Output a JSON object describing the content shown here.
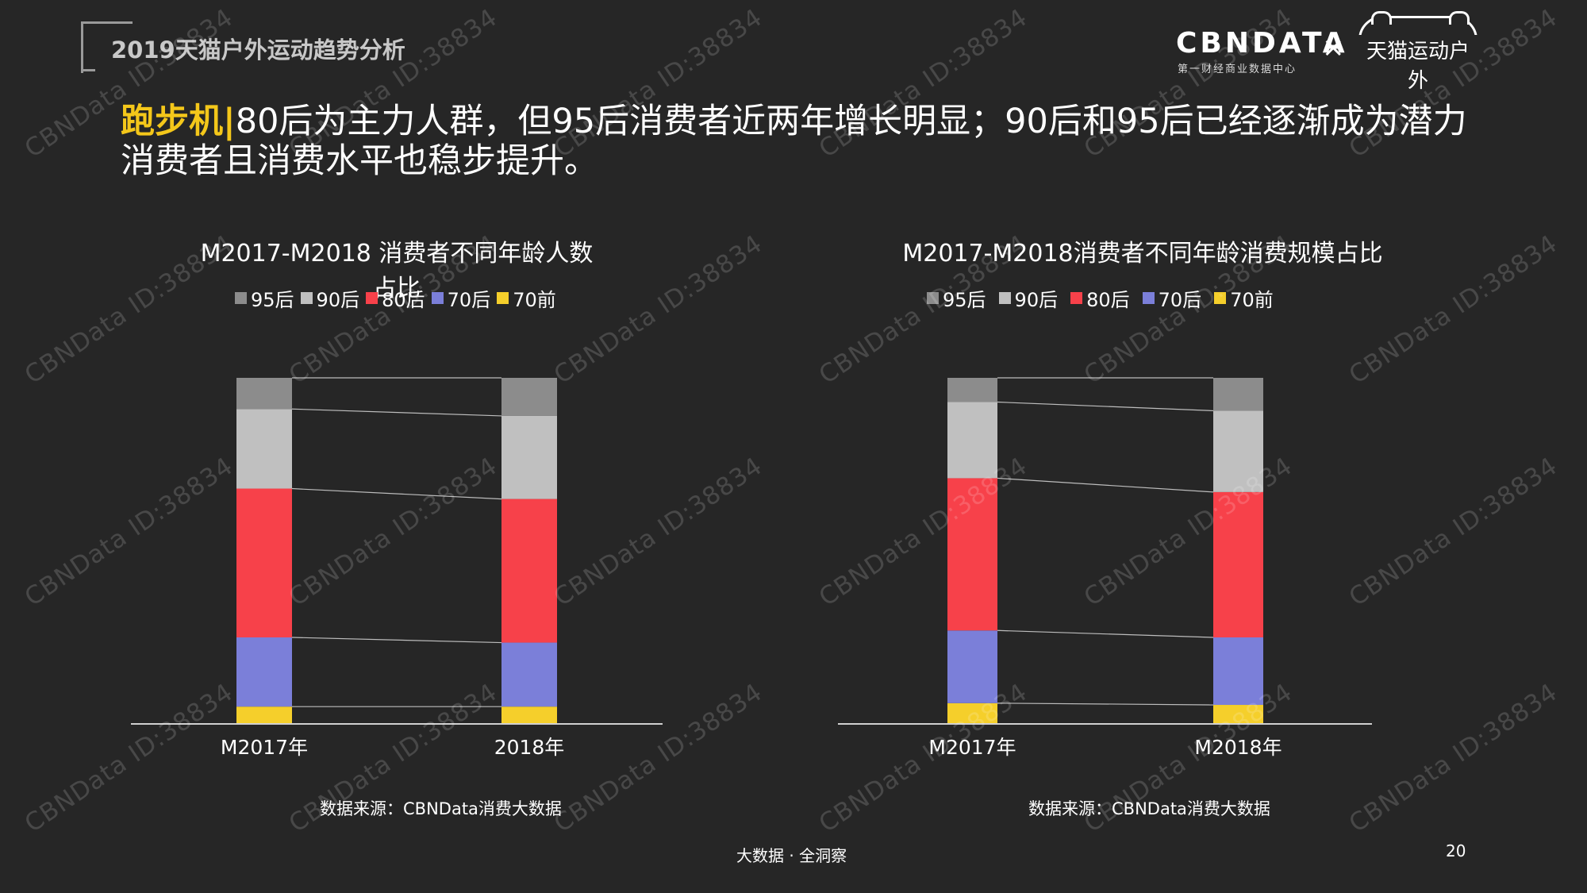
{
  "header": {
    "title": "2019天猫户外运动趋势分析"
  },
  "brand": {
    "cbndata": "CBNDATA",
    "cbndata_sub": "第一财经商业数据中心",
    "times": "×",
    "tmall": "天猫运动户外"
  },
  "headline": {
    "highlight": "跑步机|",
    "text": "80后为主力人群，但95后消费者近两年增长明显；90后和95后已经逐渐成为潜力消费者且消费水平也稳步提升。"
  },
  "legend_labels": [
    "95后",
    "90后",
    "80后",
    "70后",
    "70前"
  ],
  "colors": {
    "95后": "#8c8c8c",
    "90后": "#c0c0c0",
    "80后": "#f7414a",
    "70后": "#7b7fd9",
    "70前": "#f5cf2b"
  },
  "chart_data": [
    {
      "type": "bar",
      "stacked": true,
      "title": "M2017-M2018 消费者不同年龄人数占比",
      "categories": [
        "M2017年",
        "2018年"
      ],
      "ylim": [
        0,
        100
      ],
      "series": [
        {
          "name": "70前",
          "values": [
            5,
            5
          ]
        },
        {
          "name": "70后",
          "values": [
            20,
            18.5
          ]
        },
        {
          "name": "80后",
          "values": [
            43,
            41.5
          ]
        },
        {
          "name": "90后",
          "values": [
            23,
            24
          ]
        },
        {
          "name": "95后",
          "values": [
            9,
            11
          ]
        }
      ],
      "source": "数据来源：CBNData消费大数据"
    },
    {
      "type": "bar",
      "stacked": true,
      "title": "M2017-M2018消费者不同年龄消费规模占比",
      "categories": [
        "M2017年",
        "M2018年"
      ],
      "ylim": [
        0,
        100
      ],
      "series": [
        {
          "name": "70前",
          "values": [
            6,
            5.5
          ]
        },
        {
          "name": "70后",
          "values": [
            21,
            19.5
          ]
        },
        {
          "name": "80后",
          "values": [
            44,
            42
          ]
        },
        {
          "name": "90后",
          "values": [
            22,
            23.5
          ]
        },
        {
          "name": "95后",
          "values": [
            7,
            9.5
          ]
        }
      ],
      "source": "数据来源：CBNData消费大数据"
    }
  ],
  "footer": {
    "tagline": "大数据 · 全洞察",
    "page": "20"
  },
  "watermark_text": "CBNData ID:38834"
}
